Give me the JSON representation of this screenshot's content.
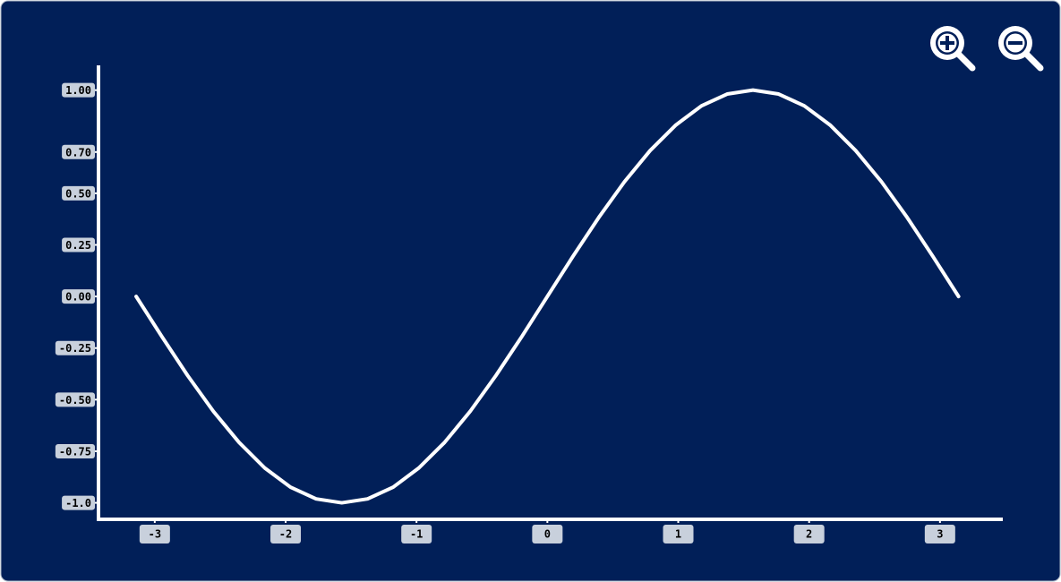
{
  "chart_data": {
    "type": "line",
    "x": [
      -3.142,
      -2.945,
      -2.749,
      -2.553,
      -2.356,
      -2.16,
      -1.963,
      -1.767,
      -1.571,
      -1.374,
      -1.178,
      -0.982,
      -0.785,
      -0.589,
      -0.393,
      -0.196,
      0,
      0.196,
      0.393,
      0.589,
      0.785,
      0.982,
      1.178,
      1.374,
      1.571,
      1.767,
      1.963,
      2.16,
      2.356,
      2.553,
      2.749,
      2.945,
      3.142
    ],
    "series": [
      {
        "color": "#ffffff",
        "values": [
          0,
          -0.195,
          -0.383,
          -0.556,
          -0.707,
          -0.831,
          -0.924,
          -0.981,
          -1,
          -0.981,
          -0.924,
          -0.831,
          -0.707,
          -0.556,
          -0.383,
          -0.195,
          0,
          0.195,
          0.383,
          0.556,
          0.707,
          0.831,
          0.924,
          0.981,
          1,
          0.981,
          0.924,
          0.831,
          0.707,
          0.556,
          0.383,
          0.195,
          0
        ]
      }
    ],
    "xlim": [
      -3.43,
      3.48
    ],
    "ylim": [
      -1.08,
      1.12
    ],
    "xticks": [
      -3,
      -2,
      -1,
      0,
      1,
      2,
      3
    ],
    "yticks": [
      {
        "value": 1,
        "label": "1.00"
      },
      {
        "value": 0.7,
        "label": "0.70"
      },
      {
        "value": 0.5,
        "label": "0.50"
      },
      0.25,
      {
        "value": 0,
        "label": "0.00"
      },
      -0.25,
      {
        "value": -0.5,
        "label": "-0.50"
      },
      -0.75,
      {
        "value": -1,
        "label": "-1.0"
      }
    ]
  }
}
